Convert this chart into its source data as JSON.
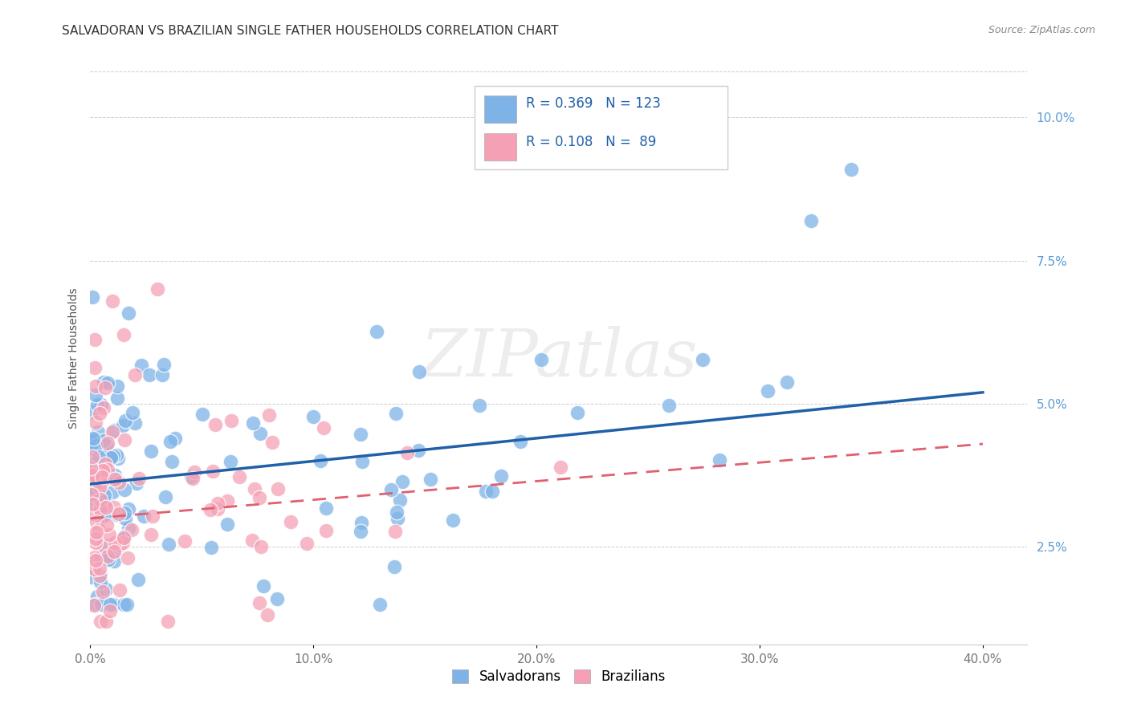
{
  "title": "SALVADORAN VS BRAZILIAN SINGLE FATHER HOUSEHOLDS CORRELATION CHART",
  "source": "Source: ZipAtlas.com",
  "xlim": [
    0.0,
    0.42
  ],
  "ylim": [
    0.008,
    0.108
  ],
  "salvadoran_R": 0.369,
  "salvadoran_N": 123,
  "brazilian_R": 0.108,
  "brazilian_N": 89,
  "salvadoran_color": "#7EB3E8",
  "salvadoran_line_color": "#2060A8",
  "brazilian_color": "#F5A0B5",
  "brazilian_line_color": "#E06070",
  "background_color": "#FFFFFF",
  "watermark": "ZIPatlas",
  "legend_label_salvadoran": "Salvadorans",
  "legend_label_brazilian": "Brazilians",
  "title_fontsize": 11,
  "axis_label_fontsize": 10,
  "tick_fontsize": 11,
  "grid_color": "#CCCCCC",
  "sal_line_start_y": 0.036,
  "sal_line_end_y": 0.052,
  "bra_line_start_y": 0.03,
  "bra_line_end_y": 0.043
}
